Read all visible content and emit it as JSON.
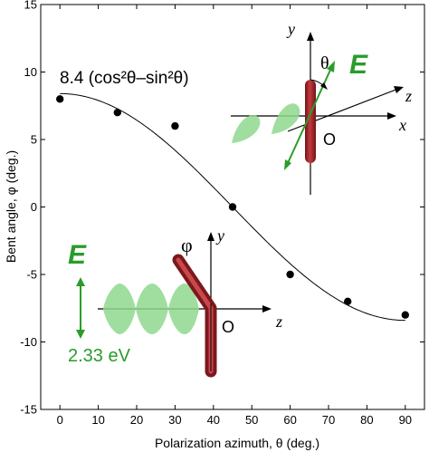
{
  "chart_data": {
    "type": "scatter",
    "xlabel": "Polarization azimuth, θ (deg.)",
    "ylabel": "Bent angle, φ (deg.)",
    "xlim": [
      -5,
      95
    ],
    "ylim": [
      -15,
      15
    ],
    "xticks": [
      0,
      10,
      20,
      30,
      40,
      50,
      60,
      70,
      80,
      90
    ],
    "yticks": [
      -15,
      -10,
      -5,
      0,
      5,
      10,
      15
    ],
    "series": [
      {
        "style": "markers",
        "x": [
          0,
          15,
          30,
          45,
          60,
          75,
          90
        ],
        "y": [
          8.0,
          7.0,
          6.0,
          0.0,
          -5.0,
          -7.0,
          -8.0
        ]
      }
    ],
    "fit": {
      "label": "8.4 (cos²θ–sin²θ)",
      "amplitude": 8.4
    },
    "annotations": {
      "upper_inset": {
        "axis_y": "y",
        "axis_z": "z",
        "axis_x": "x",
        "angle": "θ",
        "field": "E",
        "origin": "O"
      },
      "lower_inset": {
        "angle": "φ",
        "axis_y": "y",
        "axis_z": "z",
        "field": "E",
        "origin": "O",
        "energy": "2.33 eV"
      }
    },
    "colors": {
      "field": "#2a9c2a",
      "rod": "#a3272b",
      "wave": "#7cd07c"
    }
  }
}
